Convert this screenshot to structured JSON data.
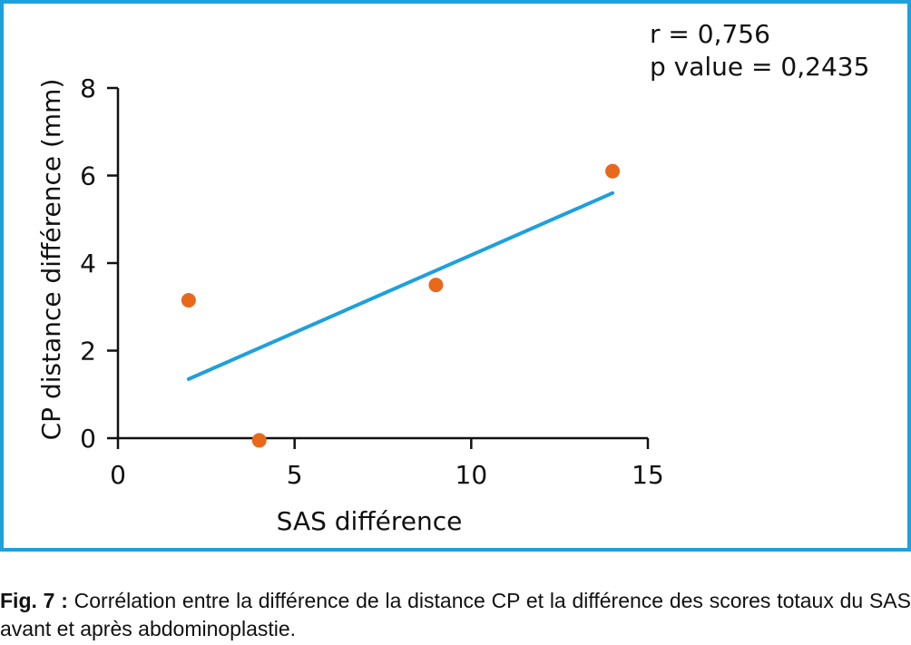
{
  "stats": {
    "r": "r = 0,756",
    "p": "p value = 0,2435"
  },
  "caption": {
    "label": "Fig. 7 :",
    "text": " Corrélation entre la différence de la distance CP et la différence des scores totaux du SAS avant et après abdominoplastie."
  },
  "colors": {
    "frame": "#1ea0dc",
    "points": "#e8681c",
    "fit_line": "#1ea0dc",
    "axis": "#111111"
  },
  "chart_data": {
    "type": "scatter",
    "xlabel": "SAS différence",
    "ylabel": "CP distance différence (mm)",
    "xlim": [
      0,
      15
    ],
    "ylim": [
      0,
      8
    ],
    "xticks": [
      0,
      5,
      10,
      15
    ],
    "yticks": [
      0,
      2,
      4,
      6,
      8
    ],
    "points": [
      {
        "x": 2,
        "y": 3.15
      },
      {
        "x": 4,
        "y": -0.05
      },
      {
        "x": 9,
        "y": 3.5
      },
      {
        "x": 14,
        "y": 6.1
      }
    ],
    "fit_line": {
      "x0": 2,
      "y0": 1.35,
      "x1": 14,
      "y1": 5.6
    },
    "annotations": [
      "r = 0,756",
      "p value = 0,2435"
    ]
  }
}
